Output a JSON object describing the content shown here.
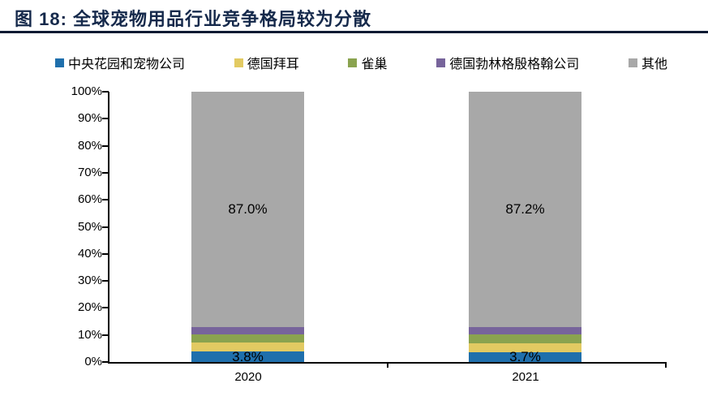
{
  "header": {
    "title": "图 18: 全球宠物用品行业竞争格局较为分散",
    "title_color": "#15294B",
    "rule_color": "#0D1B33"
  },
  "chart_data": {
    "type": "bar",
    "stacked": true,
    "title": "图 18: 全球宠物用品行业竞争格局较为分散",
    "categories": [
      "2020",
      "2021"
    ],
    "series": [
      {
        "name": "中央花园和宠物公司",
        "color": "#1F6FAC",
        "values": [
          3.8,
          3.7
        ],
        "data_labels": [
          "3.8%",
          "3.7%"
        ]
      },
      {
        "name": "德国拜耳",
        "color": "#E2CA62",
        "values": [
          3.3,
          3.3
        ],
        "data_labels": null
      },
      {
        "name": "雀巢",
        "color": "#8AA34F",
        "values": [
          3.1,
          3.1
        ],
        "data_labels": null
      },
      {
        "name": "德国勃林格殷格翰公司",
        "color": "#77649B",
        "values": [
          2.8,
          2.7
        ],
        "data_labels": null
      },
      {
        "name": "其他",
        "color": "#A8A8A8",
        "values": [
          87.0,
          87.2
        ],
        "data_labels": [
          "87.0%",
          "87.2%"
        ]
      }
    ],
    "ylim": [
      0,
      100
    ],
    "yticks": [
      "0%",
      "10%",
      "20%",
      "30%",
      "40%",
      "50%",
      "60%",
      "70%",
      "80%",
      "90%",
      "100%"
    ],
    "xlabel": "",
    "ylabel": "",
    "legend_position": "top",
    "grid": false
  }
}
